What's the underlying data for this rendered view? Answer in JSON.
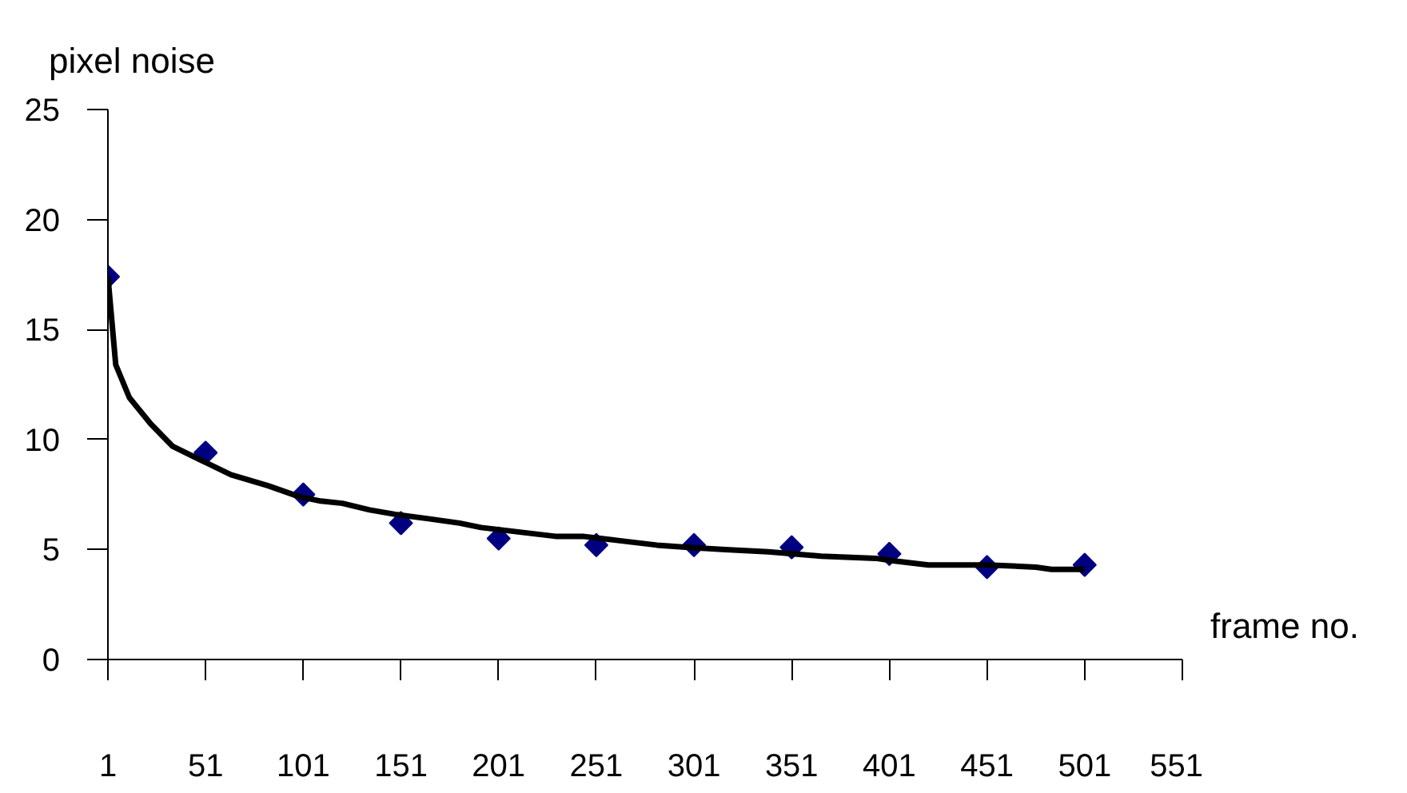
{
  "chart_data": {
    "type": "scatter",
    "xlabel": "frame no.",
    "ylabel": "pixel noise",
    "xlim": [
      1,
      551
    ],
    "xticks": [
      1,
      51,
      101,
      151,
      201,
      251,
      301,
      351,
      401,
      451,
      501,
      551
    ],
    "ylim": [
      0,
      25
    ],
    "yticks": [
      0,
      5,
      10,
      15,
      20,
      25
    ],
    "series": [
      {
        "marker": "diamond",
        "color": "#000080",
        "x": [
          1,
          51,
          101,
          151,
          201,
          251,
          301,
          351,
          401,
          451,
          501
        ],
        "values": [
          17.4,
          9.4,
          7.5,
          6.2,
          5.5,
          5.2,
          5.2,
          5.1,
          4.8,
          4.2,
          4.3
        ]
      },
      {
        "type": "line",
        "color": "#000000",
        "x": [
          1,
          5,
          12,
          23,
          34,
          50,
          64,
          83,
          99,
          110,
          121,
          135,
          148,
          165,
          181,
          192,
          211,
          230,
          244,
          263,
          282,
          298,
          317,
          339,
          366,
          394,
          402,
          421,
          451,
          476,
          484,
          501
        ],
        "values": [
          17.4,
          13.4,
          11.9,
          10.7,
          9.7,
          9.0,
          8.4,
          7.9,
          7.4,
          7.2,
          7.1,
          6.8,
          6.6,
          6.4,
          6.2,
          6.0,
          5.8,
          5.6,
          5.6,
          5.4,
          5.2,
          5.1,
          5.0,
          4.9,
          4.7,
          4.6,
          4.5,
          4.3,
          4.3,
          4.2,
          4.1,
          4.1
        ]
      }
    ]
  }
}
